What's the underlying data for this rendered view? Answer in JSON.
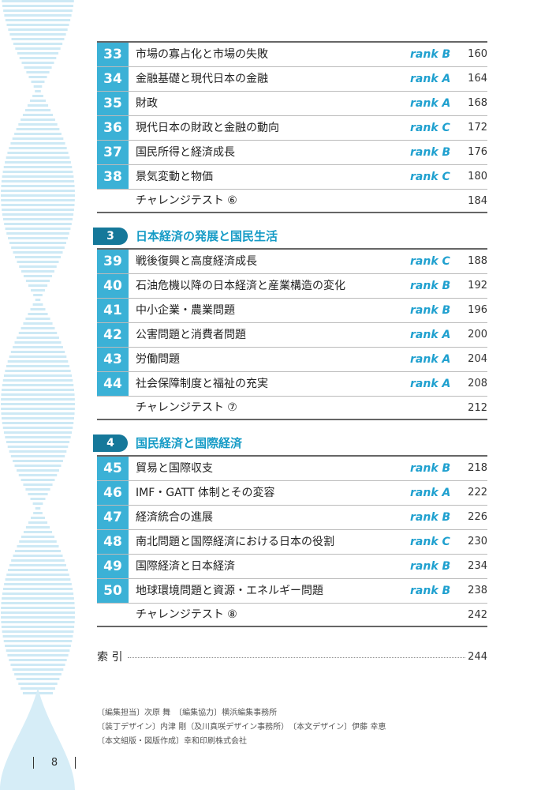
{
  "sections": [
    {
      "items": [
        {
          "no": "33",
          "title": "市場の寡占化と市場の失敗",
          "rank": "rank B",
          "page": 160
        },
        {
          "no": "34",
          "title": "金融基礎と現代日本の金融",
          "rank": "rank A",
          "page": 164
        },
        {
          "no": "35",
          "title": "財政",
          "rank": "rank A",
          "page": 168
        },
        {
          "no": "36",
          "title": "現代日本の財政と金融の動向",
          "rank": "rank C",
          "page": 172
        },
        {
          "no": "37",
          "title": "国民所得と経済成長",
          "rank": "rank B",
          "page": 176
        },
        {
          "no": "38",
          "title": "景気変動と物価",
          "rank": "rank C",
          "page": 180
        }
      ],
      "challenge": {
        "title": "チャレンジテスト ⑥",
        "page": 184
      }
    },
    {
      "number": "3",
      "heading": "日本経済の発展と国民生活",
      "items": [
        {
          "no": "39",
          "title": "戦後復興と高度経済成長",
          "rank": "rank C",
          "page": 188
        },
        {
          "no": "40",
          "title": "石油危機以降の日本経済と産業構造の変化",
          "rank": "rank B",
          "page": 192
        },
        {
          "no": "41",
          "title": "中小企業・農業問題",
          "rank": "rank B",
          "page": 196
        },
        {
          "no": "42",
          "title": "公害問題と消費者問題",
          "rank": "rank A",
          "page": 200
        },
        {
          "no": "43",
          "title": "労働問題",
          "rank": "rank A",
          "page": 204
        },
        {
          "no": "44",
          "title": "社会保障制度と福祉の充実",
          "rank": "rank A",
          "page": 208
        }
      ],
      "challenge": {
        "title": "チャレンジテスト ⑦",
        "page": 212
      }
    },
    {
      "number": "4",
      "heading": "国民経済と国際経済",
      "items": [
        {
          "no": "45",
          "title": "貿易と国際収支",
          "rank": "rank B",
          "page": 218
        },
        {
          "no": "46",
          "title": "IMF・GATT 体制とその変容",
          "rank": "rank A",
          "page": 222
        },
        {
          "no": "47",
          "title": "経済統合の進展",
          "rank": "rank B",
          "page": 226
        },
        {
          "no": "48",
          "title": "南北問題と国際経済における日本の役割",
          "rank": "rank C",
          "page": 230
        },
        {
          "no": "49",
          "title": "国際経済と日本経済",
          "rank": "rank B",
          "page": 234
        },
        {
          "no": "50",
          "title": "地球環境問題と資源・エネルギー問題",
          "rank": "rank B",
          "page": 238
        }
      ],
      "challenge": {
        "title": "チャレンジテスト ⑧",
        "page": 242
      }
    }
  ],
  "index": {
    "label": "索 引",
    "page": 244
  },
  "credits": [
    "〔編集担当〕次原 舞　〔編集協力〕横浜編集事務所",
    "〔装丁デザイン〕内津 剛（及川真咲デザイン事務所）　〔本文デザイン〕伊藤 幸恵",
    "〔本文組版・図版作成〕幸和印刷株式会社"
  ],
  "page_number": "8"
}
